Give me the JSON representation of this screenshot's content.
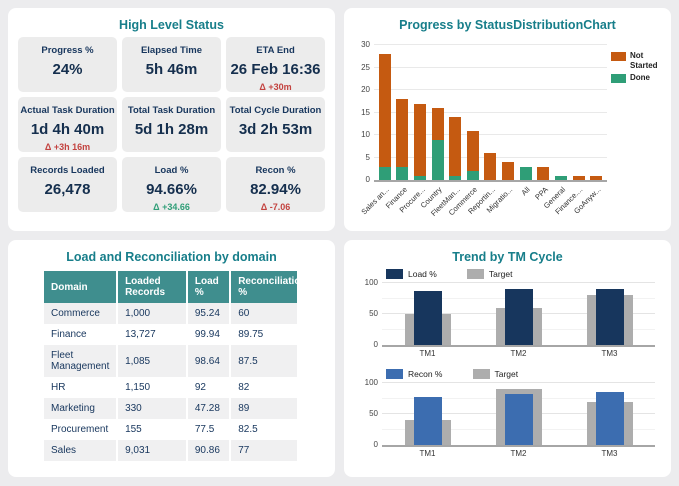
{
  "colors": {
    "teal_title": "#177e8a",
    "navy": "#17365d",
    "red": "#c3423f",
    "green": "#2f9e77",
    "orange": "#c55a11",
    "blue": "#3c6db0",
    "bar_gray": "#adadad",
    "table_header_bg": "#3f8e8e",
    "card_bg": "#ececec",
    "page_bg": "#ececee"
  },
  "high_level_status": {
    "title": "High Level Status",
    "cards": [
      {
        "label": "Progress %",
        "value": "24%"
      },
      {
        "label": "Elapsed Time",
        "value": "5h 46m"
      },
      {
        "label": "ETA End",
        "value": "26 Feb 16:36",
        "delta": "Δ +30m",
        "delta_color": "red"
      },
      {
        "label": "Actual Task Duration",
        "value": "1d 4h 40m",
        "delta": "Δ +3h 16m",
        "delta_color": "red"
      },
      {
        "label": "Total Task Duration",
        "value": "5d 1h 28m"
      },
      {
        "label": "Total Cycle Duration",
        "value": "3d 2h 53m"
      },
      {
        "label": "Records Loaded",
        "value": "26,478"
      },
      {
        "label": "Load %",
        "value": "94.66%",
        "delta": "Δ +34.66",
        "delta_color": "green"
      },
      {
        "label": "Recon %",
        "value": "82.94%",
        "delta": "Δ -7.06",
        "delta_color": "red"
      }
    ]
  },
  "load_recon_table": {
    "title": "Load and Reconciliation by domain",
    "columns": [
      "Domain",
      "Loaded Records",
      "Load %",
      "Reconciliation %"
    ],
    "rows": [
      [
        "Commerce",
        "1,000",
        "95.24",
        "60"
      ],
      [
        "Finance",
        "13,727",
        "99.94",
        "89.75"
      ],
      [
        "Fleet Management",
        "1,085",
        "98.64",
        "87.5"
      ],
      [
        "HR",
        "1,150",
        "92",
        "82"
      ],
      [
        "Marketing",
        "330",
        "47.28",
        "89"
      ],
      [
        "Procurement",
        "155",
        "77.5",
        "82.5"
      ],
      [
        "Sales",
        "9,031",
        "90.86",
        "77"
      ]
    ]
  },
  "trend_panel": {
    "title": "Trend by TM Cycle"
  },
  "chart_data": [
    {
      "id": "status_distribution",
      "type": "bar",
      "stacked": true,
      "title": "Progress by StatusDistributionChart",
      "categories": [
        "Sales an...",
        "Finance",
        "Procure...",
        "Country",
        "FleetMan...",
        "Commerce",
        "Reportin...",
        "Migratio...",
        "All",
        "PPA",
        "General",
        "Finance....",
        "GoAnyw..."
      ],
      "series": [
        {
          "name": "Done",
          "color": "#2f9e77",
          "values": [
            3,
            3,
            1,
            9,
            1,
            2,
            0,
            0,
            3,
            0,
            1,
            0,
            0
          ]
        },
        {
          "name": "Not Started",
          "color": "#c55a11",
          "values": [
            25,
            15,
            16,
            7,
            13,
            9,
            6,
            4,
            0,
            3,
            0,
            1,
            1
          ]
        }
      ],
      "ylim": [
        0,
        30
      ],
      "yticks": [
        0,
        5,
        10,
        15,
        20,
        25,
        30
      ],
      "legend_order": [
        "Not Started",
        "Done"
      ],
      "legend_position": "right",
      "grid": true
    },
    {
      "id": "trend_load",
      "type": "bar",
      "overlay": true,
      "title": "Trend by TM Cycle",
      "categories": [
        "TM1",
        "TM2",
        "TM3"
      ],
      "series": [
        {
          "name": "Load %",
          "color": "#17365d",
          "values": [
            87,
            90,
            91
          ]
        },
        {
          "name": "Target",
          "color": "#adadad",
          "values": [
            50,
            60,
            80
          ]
        }
      ],
      "ylim": [
        0,
        100
      ],
      "yticks": [
        0,
        50,
        100
      ],
      "legend_position": "top",
      "grid": true
    },
    {
      "id": "trend_recon",
      "type": "bar",
      "overlay": true,
      "title": "",
      "categories": [
        "TM1",
        "TM2",
        "TM3"
      ],
      "series": [
        {
          "name": "Recon %",
          "color": "#3c6db0",
          "values": [
            77,
            82,
            86
          ]
        },
        {
          "name": "Target",
          "color": "#adadad",
          "values": [
            40,
            90,
            70
          ]
        }
      ],
      "ylim": [
        0,
        100
      ],
      "yticks": [
        0,
        50,
        100
      ],
      "legend_position": "top",
      "grid": true
    }
  ]
}
